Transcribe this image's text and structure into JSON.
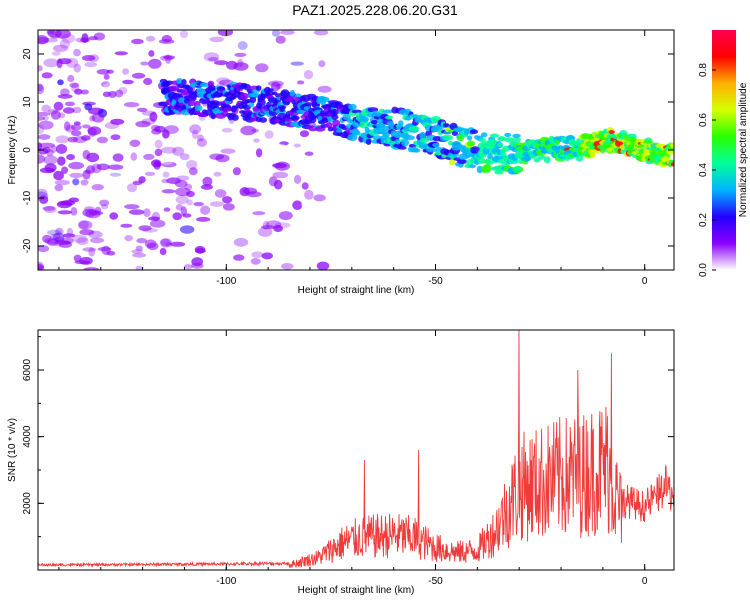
{
  "title": "PAZ1.2025.228.06.20.G31",
  "colors": {
    "line": "#ee3b3b",
    "axis": "#000000",
    "background": "#ffffff"
  },
  "colormap": [
    "#ffffff",
    "#8a00ff",
    "#2300ff",
    "#00b4ff",
    "#00ff9a",
    "#2bff00",
    "#d6ff00",
    "#ffb000",
    "#ff0000",
    "#ff0050"
  ],
  "chart_data": [
    {
      "type": "heatmap",
      "xlabel": "Height of straight line (km)",
      "ylabel": "Frequency (Hz)",
      "xlim": [
        -145,
        7
      ],
      "ylim": [
        -25,
        25
      ],
      "xticks": [
        -100,
        -50,
        0
      ],
      "yticks": [
        -20,
        -10,
        0,
        10,
        20
      ],
      "colorbar": {
        "label": "Normalized spectral amplitude",
        "range": [
          0,
          0.96
        ],
        "ticks": [
          0.0,
          0.2,
          0.4,
          0.6,
          0.8
        ]
      },
      "ridge": {
        "description_points": [
          {
            "x": -110,
            "y": 11
          },
          {
            "x": -95,
            "y": 10
          },
          {
            "x": -80,
            "y": 8
          },
          {
            "x": -65,
            "y": 5
          },
          {
            "x": -55,
            "y": 4
          },
          {
            "x": -45,
            "y": 1
          },
          {
            "x": -35,
            "y": -1
          },
          {
            "x": -25,
            "y": 0
          },
          {
            "x": -15,
            "y": 0.5
          },
          {
            "x": -8,
            "y": 2
          },
          {
            "x": 0,
            "y": 0
          },
          {
            "x": 6,
            "y": -1
          }
        ],
        "peak_amplitude": 0.95
      }
    },
    {
      "type": "line",
      "xlabel": "Height of straight line (km)",
      "ylabel": "SNR (10 * v/v)",
      "xlim": [
        -145,
        7
      ],
      "ylim": [
        0,
        7200
      ],
      "xticks": [
        -100,
        -50,
        0
      ],
      "yticks": [
        2000,
        4000,
        6000
      ],
      "envelope": [
        {
          "x": -145,
          "y": 150
        },
        {
          "x": -100,
          "y": 180
        },
        {
          "x": -85,
          "y": 200
        },
        {
          "x": -78,
          "y": 500
        },
        {
          "x": -72,
          "y": 1100
        },
        {
          "x": -68,
          "y": 1300
        },
        {
          "x": -60,
          "y": 1400
        },
        {
          "x": -55,
          "y": 1300
        },
        {
          "x": -50,
          "y": 900
        },
        {
          "x": -45,
          "y": 700
        },
        {
          "x": -40,
          "y": 800
        },
        {
          "x": -36,
          "y": 1500
        },
        {
          "x": -33,
          "y": 2400
        },
        {
          "x": -30,
          "y": 3300
        },
        {
          "x": -25,
          "y": 3500
        },
        {
          "x": -20,
          "y": 3700
        },
        {
          "x": -15,
          "y": 3800
        },
        {
          "x": -9,
          "y": 4200
        },
        {
          "x": -7,
          "y": 3000
        },
        {
          "x": -5,
          "y": 2100
        },
        {
          "x": 0,
          "y": 1900
        },
        {
          "x": 5,
          "y": 2500
        },
        {
          "x": 7,
          "y": 2200
        }
      ],
      "spikes": [
        {
          "x": -67,
          "y": 3300
        },
        {
          "x": -54,
          "y": 3600
        },
        {
          "x": -30,
          "y": 7200
        },
        {
          "x": -16,
          "y": 6000
        },
        {
          "x": -8,
          "y": 6500
        }
      ]
    }
  ]
}
